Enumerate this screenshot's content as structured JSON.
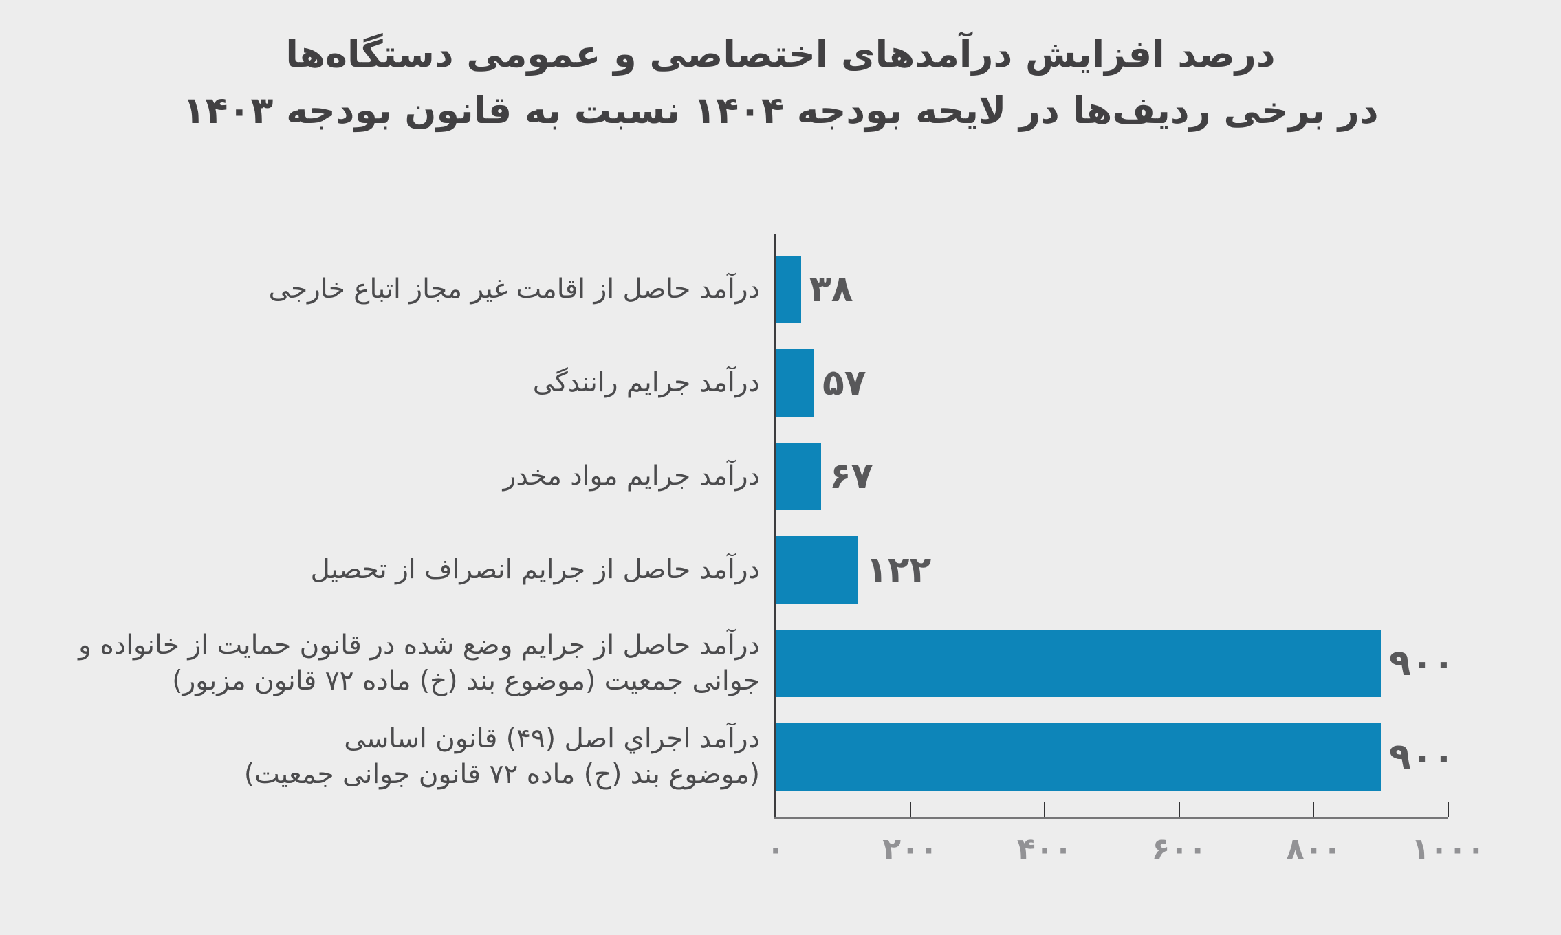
{
  "title": {
    "line1": "درصد افزایش درآمدهای اختصاصی و عمومی دستگاه‌ها",
    "line2": "در برخی ردیف‌ها در لایحه بودجه ۱۴۰۴ نسبت به قانون بودجه ۱۴۰۳"
  },
  "colors": {
    "background": "#ededed",
    "bar": "#0d85b9",
    "title_text": "#414042",
    "category_text": "#4b4b4d",
    "value_text": "#58585a",
    "tick_text": "#929295",
    "axis_line": "#767678",
    "tick_mark": "#333335"
  },
  "chart_data": {
    "type": "bar",
    "orientation": "horizontal",
    "title": "درصد افزایش درآمدهای اختصاصی و عمومی دستگاه‌ها در برخی ردیف‌ها در لایحه بودجه ۱۴۰۴ نسبت به قانون بودجه ۱۴۰۳",
    "categories": [
      "درآمد حاصل از اقامت غیر مجاز اتباع خارجی",
      "درآمد جرایم رانندگی",
      "درآمد جرایم مواد مخدر",
      "درآمد حاصل از جرایم انصراف از تحصیل",
      "درآمد حاصل از جرایم وضع شده در قانون حمایت از خانواده و\nجوانی جمعیت (موضوع بند (خ) ماده ۷۲ قانون مزبور)",
      "درآمد اجراي اصل (۴۹) قانون اساسی\n(موضوع بند (ح) ماده ۷۲ قانون جوانی جمعیت)"
    ],
    "values": [
      38,
      57,
      67,
      122,
      900,
      900
    ],
    "value_labels": [
      "۳۸",
      "۵۷",
      "۶۷",
      "۱۲۲",
      "۹۰۰",
      "۹۰۰"
    ],
    "xlabel": "",
    "ylabel": "",
    "xlim": [
      0,
      1000
    ],
    "x_ticks": [
      0,
      200,
      400,
      600,
      800,
      1000
    ],
    "x_tick_labels": [
      "۰",
      "۲۰۰",
      "۴۰۰",
      "۶۰۰",
      "۸۰۰",
      "۱۰۰۰"
    ],
    "grid": false,
    "legend": false,
    "bar_color": "#0d85b9"
  }
}
